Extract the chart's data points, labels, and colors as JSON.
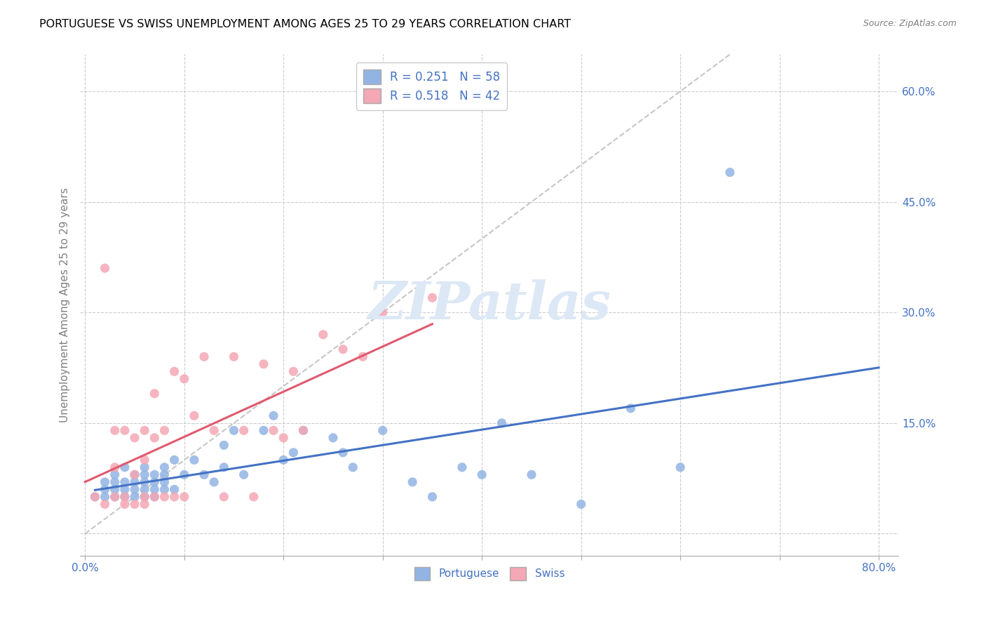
{
  "title": "PORTUGUESE VS SWISS UNEMPLOYMENT AMONG AGES 25 TO 29 YEARS CORRELATION CHART",
  "source": "Source: ZipAtlas.com",
  "ylabel": "Unemployment Among Ages 25 to 29 years",
  "xlim": [
    -0.005,
    0.82
  ],
  "ylim": [
    -0.03,
    0.65
  ],
  "xtick_positions": [
    0.0,
    0.1,
    0.2,
    0.3,
    0.4,
    0.5,
    0.6,
    0.7,
    0.8
  ],
  "xticklabels": [
    "0.0%",
    "",
    "",
    "",
    "",
    "",
    "",
    "",
    "80.0%"
  ],
  "ytick_positions": [
    0.0,
    0.15,
    0.3,
    0.45,
    0.6
  ],
  "ytick_labels": [
    "",
    "15.0%",
    "30.0%",
    "45.0%",
    "60.0%"
  ],
  "legend_r1": "R = 0.251   N = 58",
  "legend_r2": "R = 0.518   N = 42",
  "portuguese_color": "#92b4e3",
  "swiss_color": "#f4a7b4",
  "trend_portuguese_color": "#4472c4",
  "trend_swiss_color": "#e05a6e",
  "diagonal_color": "#b8b8b8",
  "text_color": "#4472c4",
  "watermark_color": "#dce8f5",
  "portuguese_scatter_x": [
    0.01,
    0.02,
    0.02,
    0.02,
    0.03,
    0.03,
    0.03,
    0.03,
    0.04,
    0.04,
    0.04,
    0.04,
    0.05,
    0.05,
    0.05,
    0.05,
    0.06,
    0.06,
    0.06,
    0.06,
    0.06,
    0.07,
    0.07,
    0.07,
    0.07,
    0.08,
    0.08,
    0.08,
    0.08,
    0.09,
    0.09,
    0.1,
    0.11,
    0.12,
    0.13,
    0.14,
    0.14,
    0.15,
    0.16,
    0.18,
    0.19,
    0.2,
    0.21,
    0.22,
    0.25,
    0.26,
    0.27,
    0.3,
    0.33,
    0.35,
    0.38,
    0.4,
    0.42,
    0.45,
    0.5,
    0.55,
    0.6,
    0.65
  ],
  "portuguese_scatter_y": [
    0.05,
    0.05,
    0.06,
    0.07,
    0.05,
    0.06,
    0.07,
    0.08,
    0.05,
    0.06,
    0.07,
    0.09,
    0.05,
    0.06,
    0.07,
    0.08,
    0.05,
    0.06,
    0.07,
    0.08,
    0.09,
    0.05,
    0.06,
    0.07,
    0.08,
    0.06,
    0.07,
    0.08,
    0.09,
    0.06,
    0.1,
    0.08,
    0.1,
    0.08,
    0.07,
    0.09,
    0.12,
    0.14,
    0.08,
    0.14,
    0.16,
    0.1,
    0.11,
    0.14,
    0.13,
    0.11,
    0.09,
    0.14,
    0.07,
    0.05,
    0.09,
    0.08,
    0.15,
    0.08,
    0.04,
    0.17,
    0.09,
    0.49
  ],
  "swiss_scatter_x": [
    0.01,
    0.02,
    0.02,
    0.03,
    0.03,
    0.03,
    0.04,
    0.04,
    0.04,
    0.05,
    0.05,
    0.05,
    0.06,
    0.06,
    0.06,
    0.06,
    0.07,
    0.07,
    0.07,
    0.08,
    0.08,
    0.09,
    0.09,
    0.1,
    0.1,
    0.11,
    0.12,
    0.13,
    0.14,
    0.15,
    0.16,
    0.17,
    0.18,
    0.19,
    0.2,
    0.21,
    0.22,
    0.24,
    0.26,
    0.28,
    0.3,
    0.35
  ],
  "swiss_scatter_y": [
    0.05,
    0.04,
    0.36,
    0.05,
    0.09,
    0.14,
    0.04,
    0.05,
    0.14,
    0.04,
    0.08,
    0.13,
    0.04,
    0.05,
    0.1,
    0.14,
    0.05,
    0.13,
    0.19,
    0.05,
    0.14,
    0.05,
    0.22,
    0.05,
    0.21,
    0.16,
    0.24,
    0.14,
    0.05,
    0.24,
    0.14,
    0.05,
    0.23,
    0.14,
    0.13,
    0.22,
    0.14,
    0.27,
    0.25,
    0.24,
    0.3,
    0.32
  ]
}
